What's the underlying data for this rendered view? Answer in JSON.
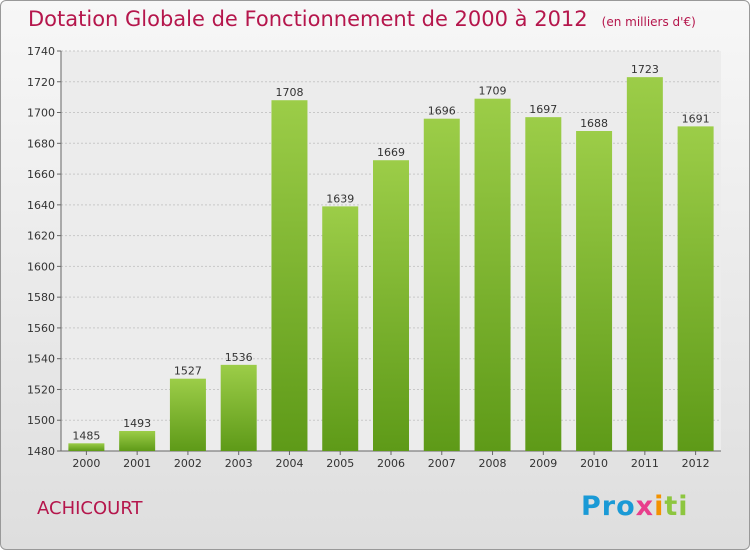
{
  "title": "Dotation Globale de Fonctionnement de 2000 à 2012",
  "unit": "(en milliers d'€)",
  "town": "ACHICOURT",
  "logo": {
    "p1": "Pro",
    "p2": "x",
    "p3": "i",
    "p4": "ti"
  },
  "colors": {
    "bar_top": "#9ccd48",
    "bar_bottom": "#5e9a18",
    "title": "#b5164c"
  },
  "chart_data": {
    "type": "bar",
    "categories": [
      "2000",
      "2001",
      "2002",
      "2003",
      "2004",
      "2005",
      "2006",
      "2007",
      "2008",
      "2009",
      "2010",
      "2011",
      "2012"
    ],
    "values": [
      1485,
      1493,
      1527,
      1536,
      1708,
      1639,
      1669,
      1696,
      1709,
      1697,
      1688,
      1723,
      1691
    ],
    "ylim": [
      1480,
      1740
    ],
    "yticks": [
      1480,
      1500,
      1520,
      1540,
      1560,
      1580,
      1600,
      1620,
      1640,
      1660,
      1680,
      1700,
      1720,
      1740
    ],
    "grid": true
  }
}
